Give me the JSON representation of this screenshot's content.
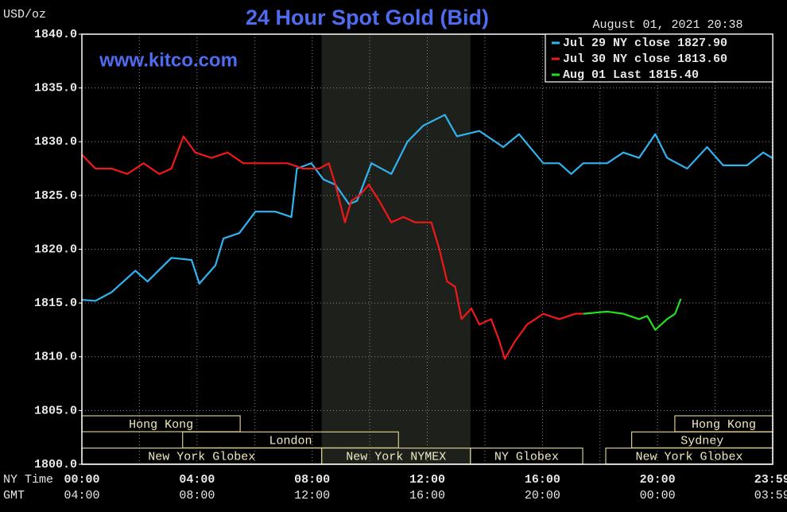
{
  "chart_data": {
    "type": "line",
    "title": "24 Hour Spot Gold (Bid)",
    "site": "www.kitco.com",
    "timestamp": "August 01, 2021 20:38",
    "y_label": "USD/oz",
    "x_label": "NY Time",
    "x2_label": "GMT",
    "xlim": [
      0,
      24
    ],
    "ylim": [
      1800,
      1840
    ],
    "yticks": [
      {
        "value": 1800,
        "label": "1800.0"
      },
      {
        "value": 1805,
        "label": "1805.0"
      },
      {
        "value": 1810,
        "label": "1810.0"
      },
      {
        "value": 1815,
        "label": "1815.0"
      },
      {
        "value": 1820,
        "label": "1820.0"
      },
      {
        "value": 1825,
        "label": "1825.0"
      },
      {
        "value": 1830,
        "label": "1830.0"
      },
      {
        "value": 1835,
        "label": "1835.0"
      },
      {
        "value": 1840,
        "label": "1840.0"
      }
    ],
    "xticks": [
      {
        "value": 0,
        "label": "00:00"
      },
      {
        "value": 4,
        "label": "04:00"
      },
      {
        "value": 8,
        "label": "08:00"
      },
      {
        "value": 12,
        "label": "12:00"
      },
      {
        "value": 16,
        "label": "16:00"
      },
      {
        "value": 20,
        "label": "20:00"
      },
      {
        "value": 23.98,
        "label": "23:59"
      }
    ],
    "x2ticks": [
      {
        "value": 0,
        "label": "04:00"
      },
      {
        "value": 4,
        "label": "08:00"
      },
      {
        "value": 8,
        "label": "12:00"
      },
      {
        "value": 12,
        "label": "16:00"
      },
      {
        "value": 16,
        "label": "20:00"
      },
      {
        "value": 20,
        "label": "00:00"
      },
      {
        "value": 23.98,
        "label": "03:59"
      }
    ],
    "xgrid": [
      2,
      6,
      10,
      14,
      18,
      22
    ],
    "grid": true,
    "highlight_range": [
      8.33,
      13.5
    ],
    "legend_position": "upper right",
    "sessions": [
      [
        {
          "label": "Hong Kong",
          "start": 0,
          "end": 5.5
        },
        {
          "label": "Hong Kong",
          "start": 20.6,
          "end": 24
        }
      ],
      [
        {
          "label": "London",
          "start": 3.5,
          "end": 11
        },
        {
          "label": "Sydney",
          "start": 19.1,
          "end": 24
        }
      ],
      [
        {
          "label": "New York Globex",
          "start": 0,
          "end": 8.33
        },
        {
          "label": "New York NYMEX",
          "start": 8.33,
          "end": 13.5
        },
        {
          "label": "NY Globex",
          "start": 13.5,
          "end": 17.4
        },
        {
          "label": "New York Globex",
          "start": 18.2,
          "end": 24
        }
      ]
    ],
    "series": [
      {
        "name": "Jul 29 NY close 1827.90",
        "color": "#2fb4f0",
        "x": [
          0,
          0.47,
          1.03,
          1.86,
          2.28,
          3.11,
          3.81,
          4.08,
          4.64,
          4.92,
          5.47,
          6.03,
          6.72,
          7.28,
          7.47,
          7.97,
          8.39,
          8.81,
          9.28,
          9.56,
          10.06,
          10.75,
          11.31,
          11.86,
          12.61,
          13.03,
          13.81,
          14.64,
          15.19,
          16.03,
          16.58,
          17.0,
          17.42,
          18.25,
          18.81,
          19.36,
          19.92,
          20.33,
          21.03,
          21.72,
          22.28,
          23.11,
          23.67,
          23.98
        ],
        "values": [
          1815.3,
          1815.2,
          1816,
          1818,
          1817,
          1819.2,
          1819,
          1816.8,
          1818.5,
          1821,
          1821.5,
          1823.5,
          1823.5,
          1823,
          1827.5,
          1828,
          1826.5,
          1826,
          1824.2,
          1824.5,
          1828,
          1827,
          1830,
          1831.5,
          1832.5,
          1830.5,
          1831,
          1829.5,
          1830.7,
          1828,
          1828,
          1827,
          1828,
          1828,
          1829,
          1828.5,
          1830.7,
          1828.5,
          1827.5,
          1829.5,
          1827.8,
          1827.8,
          1829,
          1828.5
        ]
      },
      {
        "name": "Jul 30 NY close 1813.60",
        "color": "#f01818",
        "x": [
          0,
          0.47,
          1.03,
          1.58,
          2.14,
          2.69,
          3.11,
          3.53,
          3.94,
          4.5,
          5.06,
          5.61,
          6.31,
          7.14,
          7.69,
          8.25,
          8.58,
          8.81,
          9.14,
          9.36,
          9.64,
          9.97,
          10.33,
          10.75,
          11.17,
          11.58,
          12.14,
          12.42,
          12.69,
          12.97,
          13.19,
          13.53,
          13.81,
          14.22,
          14.5,
          14.69,
          15.06,
          15.47,
          16.03,
          16.58,
          17.14,
          17.42
        ],
        "values": [
          1828.8,
          1827.5,
          1827.5,
          1827,
          1828,
          1827,
          1827.5,
          1830.5,
          1829,
          1828.5,
          1829,
          1828,
          1828,
          1828,
          1827.5,
          1827.5,
          1828,
          1826,
          1822.5,
          1824.5,
          1825,
          1826,
          1824.5,
          1822.5,
          1823,
          1822.5,
          1822.5,
          1820,
          1817,
          1816.5,
          1813.5,
          1814.5,
          1813,
          1813.5,
          1811.5,
          1809.8,
          1811.5,
          1813,
          1814,
          1813.5,
          1814,
          1814
        ]
      },
      {
        "name": "Aug 01 Last 1815.40",
        "color": "#20e020",
        "x": [
          17.42,
          18.25,
          18.81,
          19.36,
          19.64,
          19.92,
          20.33,
          20.61,
          20.81
        ],
        "values": [
          1814,
          1814.2,
          1814,
          1813.5,
          1813.8,
          1812.5,
          1813.5,
          1814,
          1815.4
        ]
      }
    ]
  }
}
